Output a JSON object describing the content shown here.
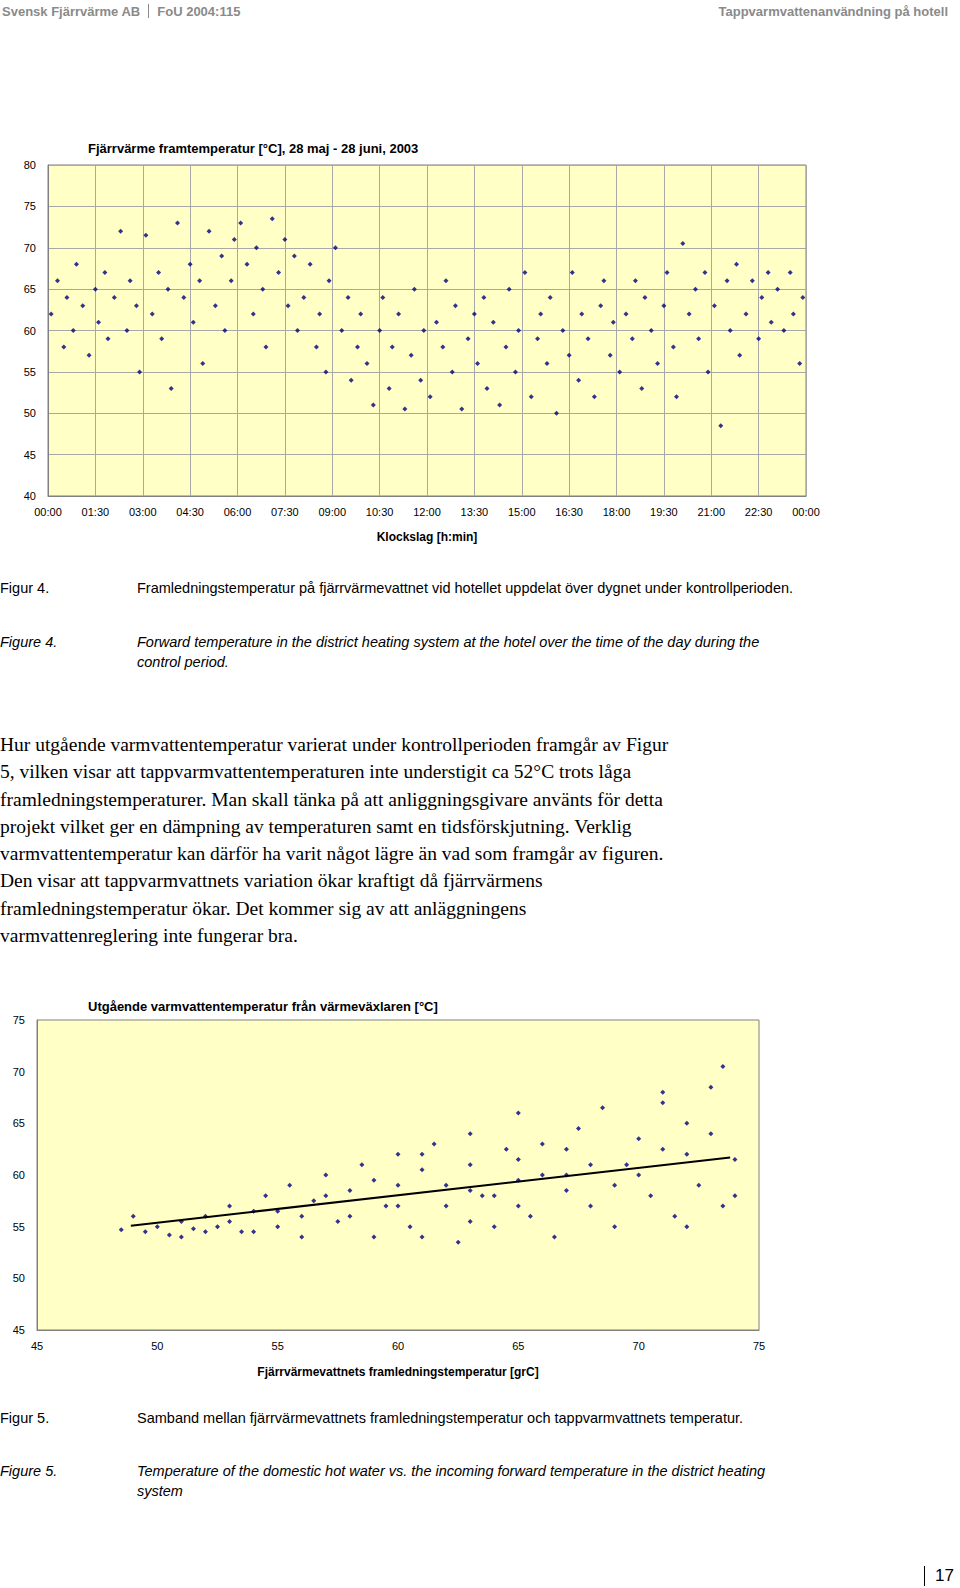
{
  "header": {
    "left": [
      "Svensk Fjärrvärme AB",
      "FoU 2004:115"
    ],
    "right": "Tappvarmvattenanvändning på hotell"
  },
  "chart_data": [
    {
      "type": "scatter",
      "title": "Fjärrvärme framtemperatur [°C], 28 maj - 28 juni, 2003",
      "xlabel": "Klockslag [h:min]",
      "xlim": [
        0,
        24
      ],
      "xticks": [
        {
          "value": 0,
          "label": "00:00"
        },
        {
          "value": 1.5,
          "label": "01:30"
        },
        {
          "value": 3,
          "label": "03:00"
        },
        {
          "value": 4.5,
          "label": "04:30"
        },
        {
          "value": 6,
          "label": "06:00"
        },
        {
          "value": 7.5,
          "label": "07:30"
        },
        {
          "value": 9,
          "label": "09:00"
        },
        {
          "value": 10.5,
          "label": "10:30"
        },
        {
          "value": 12,
          "label": "12:00"
        },
        {
          "value": 13.5,
          "label": "13:30"
        },
        {
          "value": 15,
          "label": "15:00"
        },
        {
          "value": 16.5,
          "label": "16:30"
        },
        {
          "value": 18,
          "label": "18:00"
        },
        {
          "value": 19.5,
          "label": "19:30"
        },
        {
          "value": 21,
          "label": "21:00"
        },
        {
          "value": 22.5,
          "label": "22:30"
        },
        {
          "value": 24,
          "label": "00:00"
        }
      ],
      "ylim": [
        40,
        80
      ],
      "yticks": [
        40,
        45,
        50,
        55,
        60,
        65,
        70,
        75,
        80
      ],
      "grid": true,
      "series": [
        {
          "type": "scatter",
          "color": "#000080",
          "marker": "diamond",
          "x": [
            0.1,
            0.3,
            0.5,
            0.6,
            0.8,
            0.9,
            1.1,
            1.3,
            1.5,
            1.6,
            1.8,
            1.9,
            2.1,
            2.3,
            2.5,
            2.6,
            2.8,
            2.9,
            3.1,
            3.3,
            3.5,
            3.6,
            3.8,
            3.9,
            4.1,
            4.3,
            4.5,
            4.6,
            4.8,
            4.9,
            5.1,
            5.3,
            5.5,
            5.6,
            5.8,
            5.9,
            6.1,
            6.3,
            6.5,
            6.6,
            6.8,
            6.9,
            7.1,
            7.3,
            7.5,
            7.6,
            7.8,
            7.9,
            8.1,
            8.3,
            8.5,
            8.6,
            8.8,
            8.9,
            9.1,
            9.3,
            9.5,
            9.6,
            9.8,
            9.9,
            10.1,
            10.3,
            10.5,
            10.6,
            10.8,
            10.9,
            11.1,
            11.3,
            11.5,
            11.6,
            11.8,
            11.9,
            12.1,
            12.3,
            12.5,
            12.6,
            12.8,
            12.9,
            13.1,
            13.3,
            13.5,
            13.6,
            13.8,
            13.9,
            14.1,
            14.3,
            14.5,
            14.6,
            14.8,
            14.9,
            15.1,
            15.3,
            15.5,
            15.6,
            15.8,
            15.9,
            16.1,
            16.3,
            16.5,
            16.6,
            16.8,
            16.9,
            17.1,
            17.3,
            17.5,
            17.6,
            17.8,
            17.9,
            18.1,
            18.3,
            18.5,
            18.6,
            18.8,
            18.9,
            19.1,
            19.3,
            19.5,
            19.6,
            19.8,
            19.9,
            20.1,
            20.3,
            20.5,
            20.6,
            20.8,
            20.9,
            21.1,
            21.3,
            21.5,
            21.6,
            21.8,
            21.9,
            22.1,
            22.3,
            22.5,
            22.6,
            22.8,
            22.9,
            23.1,
            23.3,
            23.5,
            23.6,
            23.8,
            23.9
          ],
          "values": [
            62,
            66,
            58,
            64,
            60,
            68,
            63,
            57,
            65,
            61,
            67,
            59,
            64,
            72,
            60,
            66,
            63,
            55,
            71.5,
            62,
            67,
            59,
            65,
            53,
            73,
            64,
            68,
            61,
            66,
            56,
            72,
            63,
            69,
            60,
            66,
            71,
            73,
            68,
            62,
            70,
            65,
            58,
            73.5,
            67,
            71,
            63,
            69,
            60,
            64,
            68,
            58,
            62,
            55,
            66,
            70,
            60,
            64,
            54,
            58,
            62,
            56,
            51,
            60,
            64,
            53,
            58,
            62,
            50.5,
            57,
            65,
            54,
            60,
            52,
            61,
            58,
            66,
            55,
            63,
            50.5,
            59,
            62,
            56,
            64,
            53,
            61,
            51,
            58,
            65,
            55,
            60,
            67,
            52,
            59,
            62,
            56,
            64,
            50,
            60,
            57,
            67,
            54,
            62,
            59,
            52,
            63,
            66,
            57,
            61,
            55,
            62,
            59,
            66,
            53,
            64,
            60,
            56,
            63,
            67,
            58,
            52,
            70.5,
            62,
            65,
            59,
            67,
            55,
            63,
            48.5,
            66,
            60,
            68,
            57,
            62,
            66,
            59,
            64,
            67,
            61,
            65,
            60,
            67,
            62,
            56,
            64
          ]
        }
      ]
    },
    {
      "type": "scatter",
      "title": "Utgående varmvattentemperatur från värmeväxlaren [°C]",
      "xlabel": "Fjärrvärmevattnets framledningstemperatur [grC]",
      "xlim": [
        45,
        75
      ],
      "xticks": [
        45,
        50,
        55,
        60,
        65,
        70,
        75
      ],
      "ylim": [
        45,
        75
      ],
      "yticks": [
        45,
        50,
        55,
        60,
        65,
        70,
        75
      ],
      "grid": false,
      "series": [
        {
          "type": "scatter",
          "color": "#000080",
          "marker": "diamond",
          "x": [
            49.5,
            50,
            50.5,
            51,
            51.5,
            52,
            52.5,
            53,
            53.5,
            54,
            54.5,
            55,
            55.5,
            56,
            56.5,
            57,
            57.5,
            58,
            58.5,
            59,
            59.5,
            60,
            60,
            60.5,
            61,
            61.5,
            62,
            62.5,
            63,
            63,
            63.5,
            64,
            64.5,
            65,
            65,
            65.5,
            66,
            66.5,
            67,
            67.5,
            68,
            68.5,
            69,
            69.5,
            70,
            70.5,
            71,
            71.5,
            72,
            72.5,
            73,
            73.5,
            73.5,
            74,
            54,
            56,
            58,
            60,
            62,
            64,
            66,
            68,
            70,
            72,
            61,
            63,
            65,
            67,
            69,
            71,
            57,
            59,
            61,
            63,
            65,
            67,
            52,
            53,
            55,
            48.5,
            49,
            51,
            71,
            73,
            72,
            74
          ],
          "values": [
            54.5,
            55,
            54.2,
            55.5,
            54.8,
            56,
            55,
            57,
            54.5,
            56.5,
            58,
            55,
            59,
            54,
            57.5,
            60,
            55.5,
            58.5,
            61,
            54,
            57,
            62,
            59,
            55,
            60.5,
            63,
            57,
            53.5,
            61,
            64,
            58,
            55,
            62.5,
            59.5,
            66,
            56,
            63,
            54,
            60,
            64.5,
            57,
            66.5,
            55,
            61,
            63.5,
            58,
            67,
            56,
            62,
            59,
            64,
            70.5,
            57,
            61.5,
            54.5,
            56,
            56,
            57,
            59,
            58,
            60,
            61,
            60,
            65,
            54,
            55.5,
            57,
            58.5,
            59,
            62.5,
            58,
            59.5,
            62,
            58.5,
            61.5,
            62.5,
            54.5,
            55.5,
            56.5,
            54.7,
            56,
            54,
            68,
            68.5,
            55,
            58
          ]
        },
        {
          "type": "line",
          "color": "#000000",
          "line_style": "solid",
          "x": [
            48.9,
            73.8
          ],
          "values": [
            55.1,
            61.7
          ]
        }
      ]
    }
  ],
  "captions": [
    {
      "label": "Figur 4.",
      "text": "Framledningstemperatur på fjärrvärmevattnet vid hotellet uppdelat över dygnet under kontrollperioden."
    },
    {
      "label": "Figure 4.",
      "text": "Forward temperature in the district heating system at the hotel over the time of the day during the control period."
    },
    {
      "label": "Figur 5.",
      "text": "Samband mellan fjärrvärmevattnets framledningstemperatur och tappvarmvattnets temperatur."
    },
    {
      "label": "Figure 5.",
      "text": "Temperature of the domestic hot water vs. the incoming forward temperature in the district heating system"
    }
  ],
  "paragraph": [
    "Hur utgående varmvattentemperatur varierat under kontrollperioden framgår av Figur",
    "5, vilken visar att tappvarmvattentemperaturen inte understigit ca 52°C trots låga",
    "framledningstemperaturer. Man skall tänka på att anliggningsgivare använts för detta",
    "projekt vilket ger en dämpning av temperaturen samt en tidsförskjutning. Verklig",
    "varmvattentemperatur kan därför ha varit något lägre än vad som framgår av figuren.",
    "Den visar att tappvarmvattnets variation ökar kraftigt då fjärrvärmens",
    "framledningstemperatur ökar. Det kommer sig av att anläggningens",
    "varmvattenreglering inte fungerar bra."
  ],
  "page_number": "17"
}
